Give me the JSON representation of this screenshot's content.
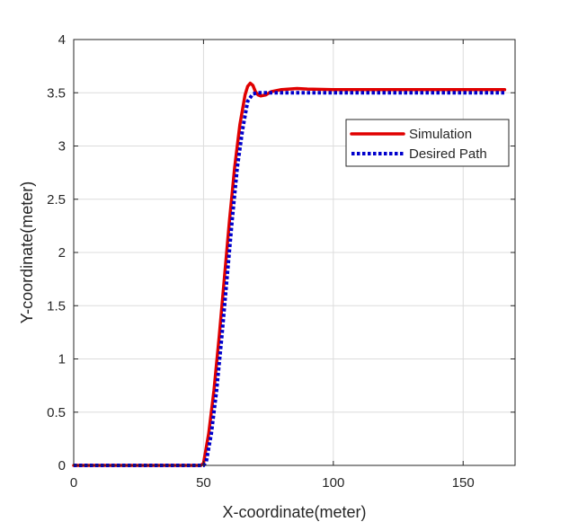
{
  "chart_data": {
    "type": "line",
    "title": "",
    "xlabel": "X-coordinate(meter)",
    "ylabel": "Y-coordinate(meter)",
    "xlim": [
      0,
      170
    ],
    "ylim": [
      0,
      4
    ],
    "xticks": [
      0,
      50,
      100,
      150
    ],
    "yticks": [
      0,
      0.5,
      1,
      1.5,
      2,
      2.5,
      3,
      3.5,
      4
    ],
    "xtick_labels": [
      "0",
      "50",
      "100",
      "150"
    ],
    "ytick_labels": [
      "0",
      "0.5",
      "1",
      "1.5",
      "2",
      "2.5",
      "3",
      "3.5",
      "4"
    ],
    "grid": true,
    "legend_position": "top-right",
    "series": [
      {
        "name": "Simulation",
        "color": "#e00000",
        "style": "solid",
        "x": [
          0,
          49,
          50,
          52,
          54,
          56,
          58,
          60,
          62,
          64,
          66,
          67,
          68,
          69,
          70,
          71,
          72,
          74,
          76,
          80,
          86,
          90,
          100,
          120,
          140,
          166
        ],
        "y": [
          0,
          0,
          0.02,
          0.3,
          0.7,
          1.2,
          1.75,
          2.3,
          2.8,
          3.2,
          3.48,
          3.56,
          3.59,
          3.57,
          3.51,
          3.48,
          3.47,
          3.48,
          3.51,
          3.53,
          3.54,
          3.535,
          3.53,
          3.53,
          3.53,
          3.53
        ]
      },
      {
        "name": "Desired Path",
        "color": "#0000cc",
        "style": "dotted",
        "x": [
          0,
          50,
          51,
          53,
          55,
          57,
          59,
          61,
          63,
          65,
          67,
          69,
          71,
          73,
          166
        ],
        "y": [
          0,
          0,
          0.03,
          0.3,
          0.7,
          1.2,
          1.75,
          2.3,
          2.8,
          3.15,
          3.42,
          3.49,
          3.5,
          3.5,
          3.5
        ]
      }
    ]
  }
}
